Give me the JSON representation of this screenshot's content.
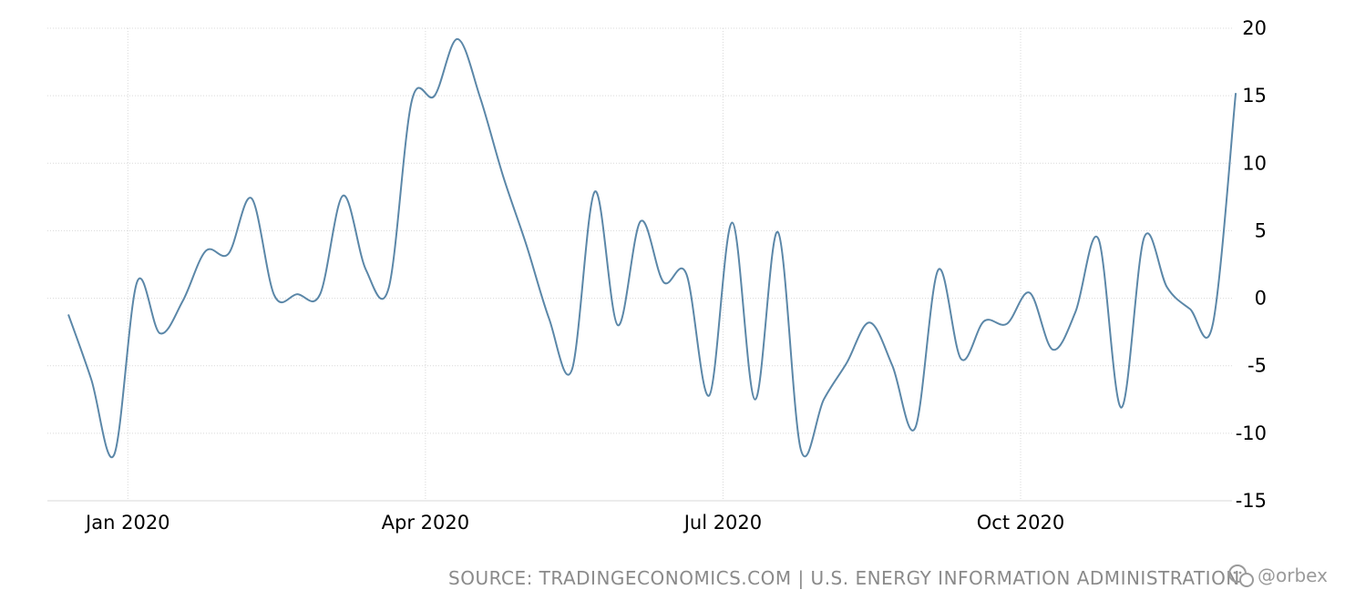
{
  "chart_data": {
    "type": "line",
    "title": "",
    "xlabel": "",
    "ylabel": "",
    "ylim": [
      -15,
      20
    ],
    "yticks": [
      20,
      15,
      10,
      5,
      0,
      -5,
      -10,
      -15
    ],
    "xticks": [
      {
        "label": "Jan 2020",
        "week": 6
      },
      {
        "label": "Apr 2020",
        "week": 19
      },
      {
        "label": "Jul 2020",
        "week": 32
      },
      {
        "label": "Oct 2020",
        "week": 45
      }
    ],
    "grid": true,
    "y_axis_side": "right",
    "series": [
      {
        "color": "#5b87a8",
        "values": [
          -1.2,
          -6,
          -11.6,
          1.2,
          -2.6,
          -0.2,
          3.5,
          3.3,
          7.4,
          0.2,
          0.3,
          0.3,
          7.6,
          2.1,
          0.8,
          14.6,
          15.0,
          19.2,
          14.8,
          9.0,
          4.0,
          -1.5,
          -5.3,
          7.9,
          -2.0,
          5.7,
          1.2,
          1.8,
          -7.2,
          5.6,
          -7.5,
          4.9,
          -11.2,
          -7.5,
          -4.8,
          -1.8,
          -5.0,
          -9.6,
          2.1,
          -4.5,
          -1.7,
          -1.9,
          0.4,
          -3.8,
          -1.0,
          4.4,
          -8.1,
          4.5,
          0.8,
          -0.8,
          -1.9,
          15.2
        ]
      }
    ]
  },
  "footer": {
    "source_text": "SOURCE: TRADINGECONOMICS.COM | U.S. ENERGY INFORMATION ADMINISTRATION",
    "watermark_text": "@orbex",
    "watermark_icon": "wechat-icon"
  }
}
